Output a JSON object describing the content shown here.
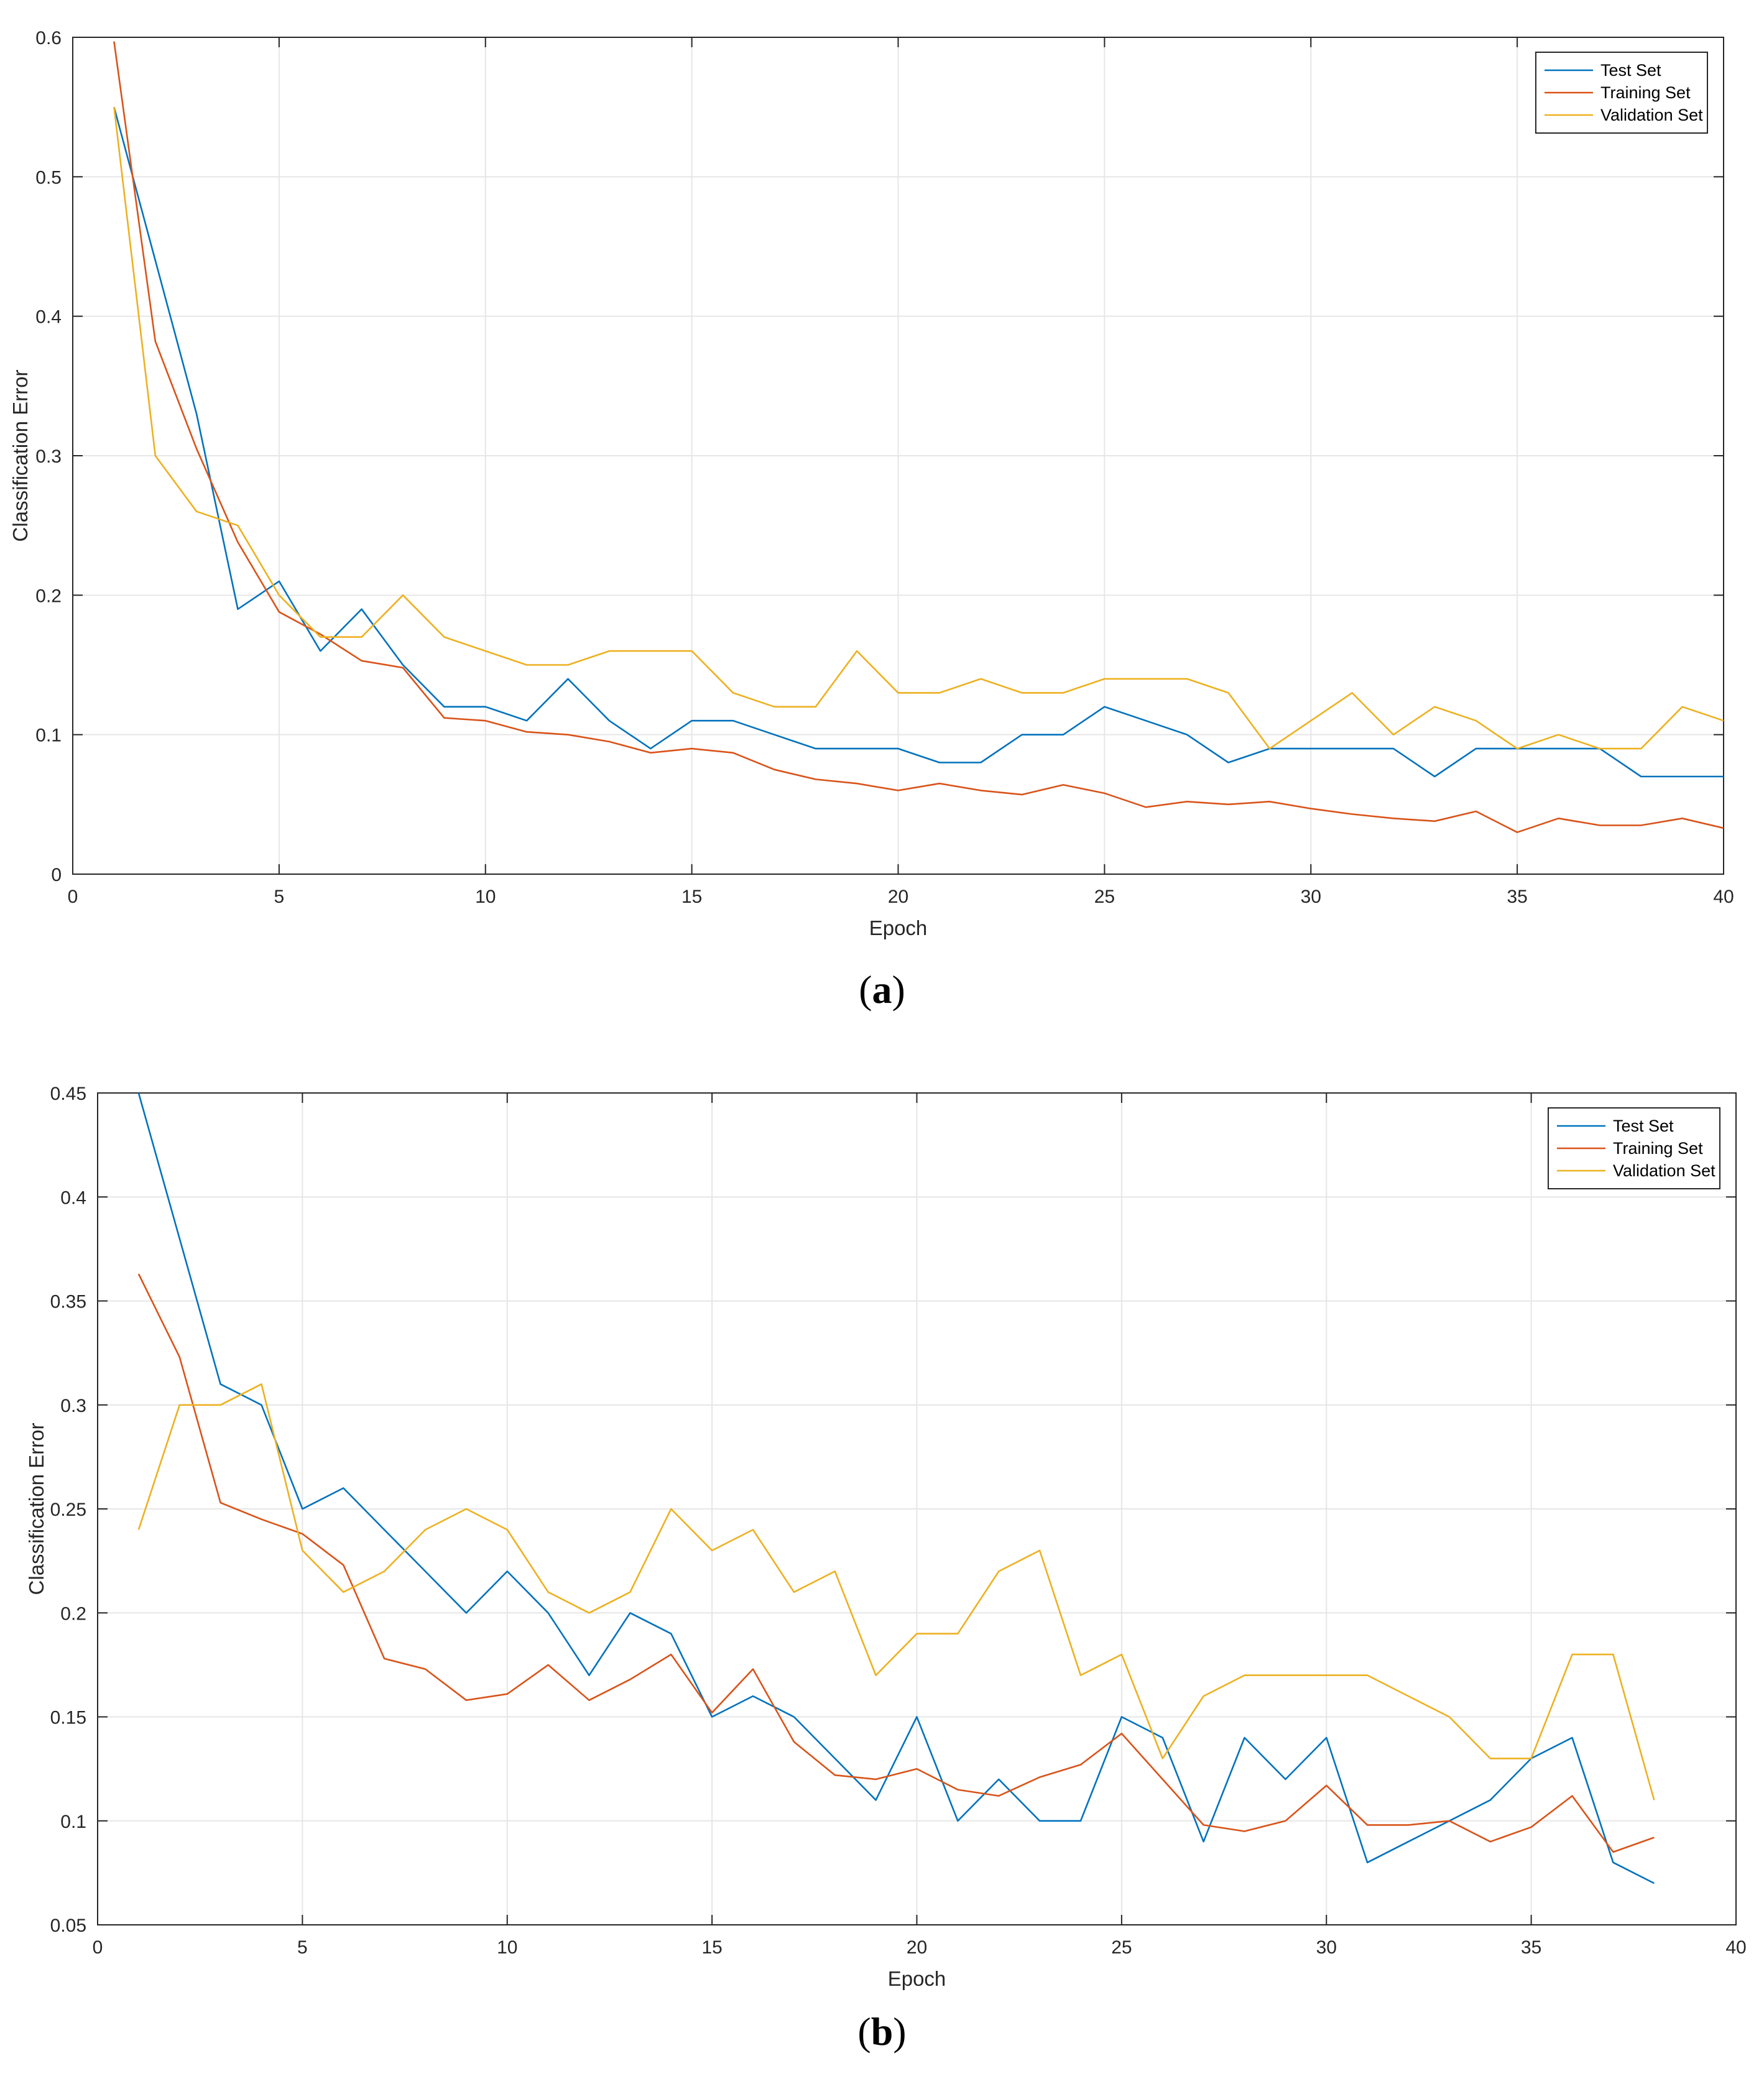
{
  "chart_data": [
    {
      "type": "line",
      "panel_label": "a",
      "xlabel": "Epoch",
      "ylabel": "Classification Error",
      "xlim": [
        0,
        40
      ],
      "ylim": [
        0,
        0.6
      ],
      "xticks": [
        0,
        5,
        10,
        15,
        20,
        25,
        30,
        35,
        40
      ],
      "yticks": [
        0,
        0.1,
        0.2,
        0.3,
        0.4,
        0.5,
        0.6
      ],
      "xtick_labels": [
        "0",
        "5",
        "10",
        "15",
        "20",
        "25",
        "30",
        "35",
        "40"
      ],
      "ytick_labels": [
        "0",
        "0.1",
        "0.2",
        "0.3",
        "0.4",
        "0.5",
        "0.6"
      ],
      "grid": true,
      "legend_position": "top-right",
      "series": [
        {
          "name": "Test Set",
          "color": "#0072BD",
          "x": [
            1,
            2,
            3,
            4,
            5,
            6,
            7,
            8,
            9,
            10,
            11,
            12,
            13,
            14,
            15,
            16,
            17,
            18,
            19,
            20,
            21,
            22,
            23,
            24,
            25,
            26,
            27,
            28,
            29,
            30,
            31,
            32,
            33,
            34,
            35,
            36,
            37,
            38,
            39,
            40
          ],
          "values": [
            0.55,
            0.44,
            0.33,
            0.19,
            0.21,
            0.16,
            0.19,
            0.15,
            0.12,
            0.12,
            0.11,
            0.14,
            0.11,
            0.09,
            0.11,
            0.11,
            0.1,
            0.09,
            0.09,
            0.09,
            0.08,
            0.08,
            0.1,
            0.1,
            0.12,
            0.11,
            0.1,
            0.08,
            0.09,
            0.09,
            0.09,
            0.09,
            0.07,
            0.09,
            0.09,
            0.09,
            0.09,
            0.07,
            0.07,
            0.07
          ]
        },
        {
          "name": "Training Set",
          "color": "#D95319",
          "x": [
            1,
            2,
            3,
            4,
            5,
            6,
            7,
            8,
            9,
            10,
            11,
            12,
            13,
            14,
            15,
            16,
            17,
            18,
            19,
            20,
            21,
            22,
            23,
            24,
            25,
            26,
            27,
            28,
            29,
            30,
            31,
            32,
            33,
            34,
            35,
            36,
            37,
            38,
            39,
            40
          ],
          "values": [
            0.597,
            0.382,
            0.305,
            0.238,
            0.188,
            0.172,
            0.153,
            0.148,
            0.112,
            0.11,
            0.102,
            0.1,
            0.095,
            0.087,
            0.09,
            0.087,
            0.075,
            0.068,
            0.065,
            0.06,
            0.065,
            0.06,
            0.057,
            0.064,
            0.058,
            0.048,
            0.052,
            0.05,
            0.052,
            0.047,
            0.043,
            0.04,
            0.038,
            0.045,
            0.03,
            0.04,
            0.035,
            0.035,
            0.04,
            0.033
          ]
        },
        {
          "name": "Validation Set",
          "color": "#EDB120",
          "x": [
            1,
            2,
            3,
            4,
            5,
            6,
            7,
            8,
            9,
            10,
            11,
            12,
            13,
            14,
            15,
            16,
            17,
            18,
            19,
            20,
            21,
            22,
            23,
            24,
            25,
            26,
            27,
            28,
            29,
            30,
            31,
            32,
            33,
            34,
            35,
            36,
            37,
            38,
            39,
            40
          ],
          "values": [
            0.55,
            0.3,
            0.26,
            0.25,
            0.2,
            0.17,
            0.17,
            0.2,
            0.17,
            0.16,
            0.15,
            0.15,
            0.16,
            0.16,
            0.16,
            0.13,
            0.12,
            0.12,
            0.16,
            0.13,
            0.13,
            0.14,
            0.13,
            0.13,
            0.14,
            0.14,
            0.14,
            0.13,
            0.09,
            0.11,
            0.13,
            0.1,
            0.12,
            0.11,
            0.09,
            0.1,
            0.09,
            0.09,
            0.12,
            0.11
          ]
        }
      ]
    },
    {
      "type": "line",
      "panel_label": "b",
      "xlabel": "Epoch",
      "ylabel": "Classification Error",
      "xlim": [
        0,
        40
      ],
      "ylim": [
        0.05,
        0.45
      ],
      "xticks": [
        0,
        5,
        10,
        15,
        20,
        25,
        30,
        35,
        40
      ],
      "yticks": [
        0.05,
        0.1,
        0.15,
        0.2,
        0.25,
        0.3,
        0.35,
        0.4,
        0.45
      ],
      "xtick_labels": [
        "0",
        "5",
        "10",
        "15",
        "20",
        "25",
        "30",
        "35",
        "40"
      ],
      "ytick_labels": [
        "0.05",
        "0.1",
        "0.15",
        "0.2",
        "0.25",
        "0.3",
        "0.35",
        "0.4",
        "0.45"
      ],
      "grid": true,
      "legend_position": "top-right",
      "series": [
        {
          "name": "Test Set",
          "color": "#0072BD",
          "x": [
            1,
            2,
            3,
            4,
            5,
            6,
            7,
            8,
            9,
            10,
            11,
            12,
            13,
            14,
            15,
            16,
            17,
            18,
            19,
            20,
            21,
            22,
            23,
            24,
            25,
            26,
            27,
            28,
            29,
            30,
            31,
            32,
            33,
            34,
            35,
            36,
            37,
            38
          ],
          "values": [
            0.45,
            0.38,
            0.31,
            0.3,
            0.25,
            0.26,
            0.24,
            0.22,
            0.2,
            0.22,
            0.2,
            0.17,
            0.2,
            0.19,
            0.15,
            0.16,
            0.15,
            0.13,
            0.11,
            0.15,
            0.1,
            0.12,
            0.1,
            0.1,
            0.15,
            0.14,
            0.09,
            0.14,
            0.12,
            0.14,
            0.08,
            0.09,
            0.1,
            0.11,
            0.13,
            0.14,
            0.08,
            0.07
          ]
        },
        {
          "name": "Training Set",
          "color": "#D95319",
          "x": [
            1,
            2,
            3,
            4,
            5,
            6,
            7,
            8,
            9,
            10,
            11,
            12,
            13,
            14,
            15,
            16,
            17,
            18,
            19,
            20,
            21,
            22,
            23,
            24,
            25,
            26,
            27,
            28,
            29,
            30,
            31,
            32,
            33,
            34,
            35,
            36,
            37,
            38
          ],
          "values": [
            0.363,
            0.323,
            0.253,
            0.245,
            0.238,
            0.223,
            0.178,
            0.173,
            0.158,
            0.161,
            0.175,
            0.158,
            0.168,
            0.18,
            0.152,
            0.173,
            0.138,
            0.122,
            0.12,
            0.125,
            0.115,
            0.112,
            0.121,
            0.127,
            0.142,
            0.12,
            0.098,
            0.095,
            0.1,
            0.117,
            0.098,
            0.098,
            0.1,
            0.09,
            0.097,
            0.112,
            0.085,
            0.092
          ]
        },
        {
          "name": "Validation Set",
          "color": "#EDB120",
          "x": [
            1,
            2,
            3,
            4,
            5,
            6,
            7,
            8,
            9,
            10,
            11,
            12,
            13,
            14,
            15,
            16,
            17,
            18,
            19,
            20,
            21,
            22,
            23,
            24,
            25,
            26,
            27,
            28,
            29,
            30,
            31,
            32,
            33,
            34,
            35,
            36,
            37,
            38
          ],
          "values": [
            0.24,
            0.3,
            0.3,
            0.31,
            0.23,
            0.21,
            0.22,
            0.24,
            0.25,
            0.24,
            0.21,
            0.2,
            0.21,
            0.25,
            0.23,
            0.24,
            0.21,
            0.22,
            0.17,
            0.19,
            0.19,
            0.22,
            0.23,
            0.17,
            0.18,
            0.13,
            0.16,
            0.17,
            0.17,
            0.17,
            0.17,
            0.16,
            0.15,
            0.13,
            0.13,
            0.18,
            0.18,
            0.11
          ]
        }
      ]
    }
  ]
}
